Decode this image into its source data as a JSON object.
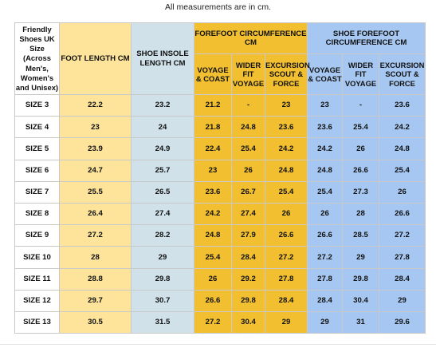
{
  "note": "All measurements are in cm.",
  "headers": {
    "friendly": "Friendly Shoes UK Size (Across Men's, Women's and Unisex)",
    "foot_length": "FOOT LENGTH CM",
    "insole_length": "SHOE INSOLE LENGTH CM",
    "forefoot": "FOREFOOT CIRCUMFERENCE CM",
    "shoe_forefoot": "SHOE FOREFOOT CIRCUMFERENCE CM",
    "sub": [
      "VOYAGE & COAST",
      "WIDER FIT VOYAGE",
      "EXCURSION SCOUT & FORCE",
      "VOYAGE & COAST",
      "WIDER FIT VOYAGE",
      "EXCURSION SCOUT & FORCE"
    ]
  },
  "rows": [
    [
      "SIZE 3",
      "22.2",
      "23.2",
      "21.2",
      "-",
      "23",
      "23",
      "-",
      "23.6"
    ],
    [
      "SIZE 4",
      "23",
      "24",
      "21.8",
      "24.8",
      "23.6",
      "23.6",
      "25.4",
      "24.2"
    ],
    [
      "SIZE 5",
      "23.9",
      "24.9",
      "22.4",
      "25.4",
      "24.2",
      "24.2",
      "26",
      "24.8"
    ],
    [
      "SIZE 6",
      "24.7",
      "25.7",
      "23",
      "26",
      "24.8",
      "24.8",
      "26.6",
      "25.4"
    ],
    [
      "SIZE 7",
      "25.5",
      "26.5",
      "23.6",
      "26.7",
      "25.4",
      "25.4",
      "27.3",
      "26"
    ],
    [
      "SIZE 8",
      "26.4",
      "27.4",
      "24.2",
      "27.4",
      "26",
      "26",
      "28",
      "26.6"
    ],
    [
      "SIZE 9",
      "27.2",
      "28.2",
      "24.8",
      "27.9",
      "26.6",
      "26.6",
      "28.5",
      "27.2"
    ],
    [
      "SIZE 10",
      "28",
      "29",
      "25.4",
      "28.4",
      "27.2",
      "27.2",
      "29",
      "27.8"
    ],
    [
      "SIZE 11",
      "28.8",
      "29.8",
      "26",
      "29.2",
      "27.8",
      "27.8",
      "29.8",
      "28.4"
    ],
    [
      "SIZE 12",
      "29.7",
      "30.7",
      "26.6",
      "29.8",
      "28.4",
      "28.4",
      "30.4",
      "29"
    ],
    [
      "SIZE 13",
      "30.5",
      "31.5",
      "27.2",
      "30.4",
      "29",
      "29",
      "31",
      "29.6"
    ]
  ]
}
